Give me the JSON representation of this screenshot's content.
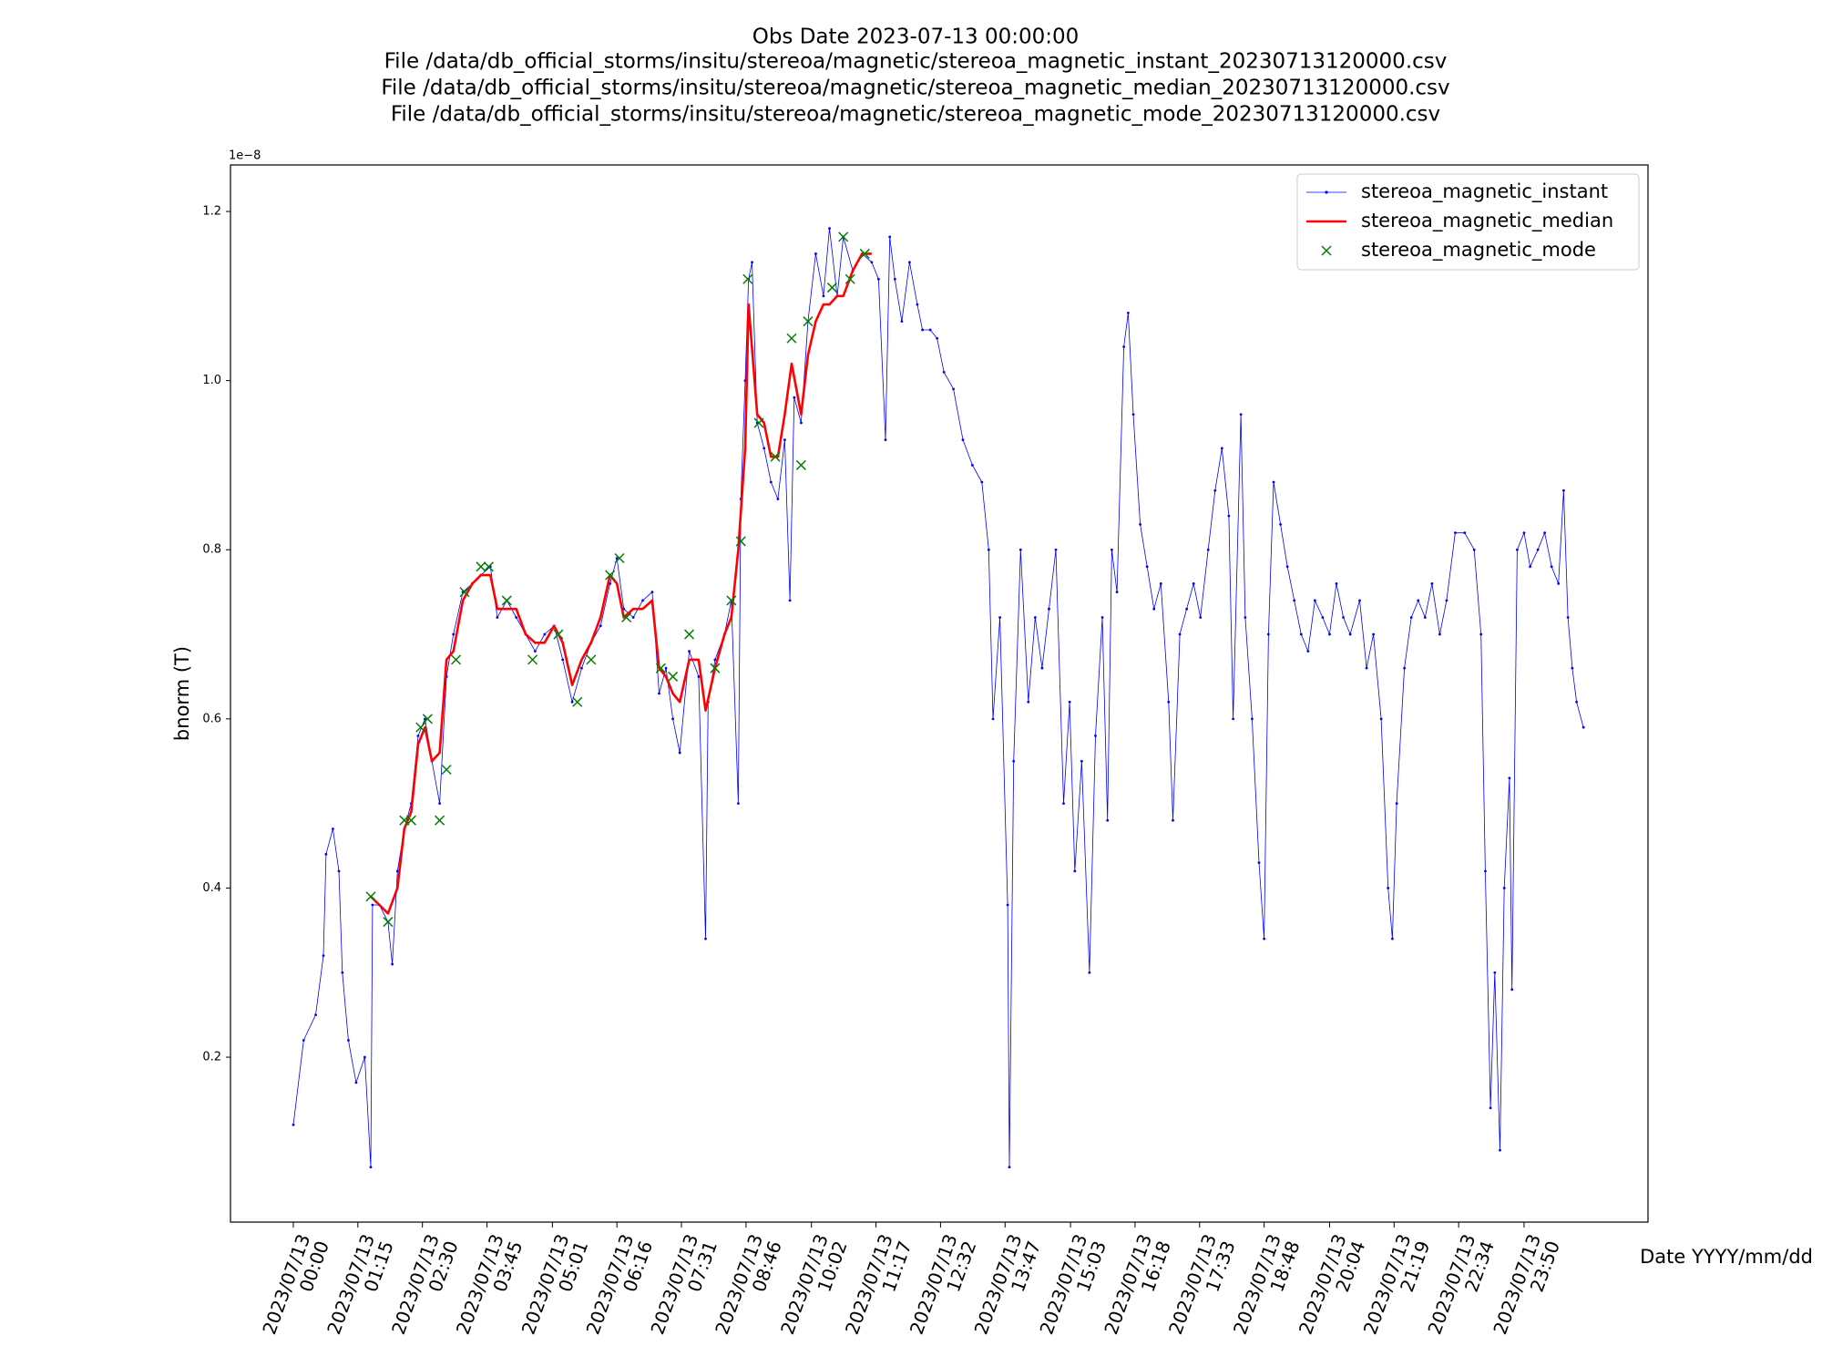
{
  "chart_data": {
    "type": "line",
    "title": [
      "Obs Date 2023-07-13 00:00:00",
      "File /data/db_official_storms/insitu/stereoa/magnetic/stereoa_magnetic_instant_20230713120000.csv",
      "File /data/db_official_storms/insitu/stereoa/magnetic/stereoa_magnetic_median_20230713120000.csv",
      "File /data/db_official_storms/insitu/stereoa/magnetic/stereoa_magnetic_mode_20230713120000.csv"
    ],
    "x_label": "Date YYYY/mm/dd",
    "y_label": "bnorm (T)",
    "y_offset_label": "1e−8",
    "legend": "upper right",
    "xlim": [
      "2023-07-12 22:47",
      "2023-07-14 02:14"
    ],
    "ylim": [
      0.005,
      1.255
    ],
    "yticks": [
      0.2,
      0.4,
      0.6,
      0.8,
      {
        "value": 1,
        "label": "1.0"
      },
      1.2
    ],
    "xticks": [
      {
        "value": "2023-07-13 00:00",
        "label": "2023/07/13\n00:00"
      },
      {
        "value": "2023-07-13 01:15",
        "label": "2023/07/13\n01:15"
      },
      {
        "value": "2023-07-13 02:30",
        "label": "2023/07/13\n02:30"
      },
      {
        "value": "2023-07-13 03:45",
        "label": "2023/07/13\n03:45"
      },
      {
        "value": "2023-07-13 05:01",
        "label": "2023/07/13\n05:01"
      },
      {
        "value": "2023-07-13 06:16",
        "label": "2023/07/13\n06:16"
      },
      {
        "value": "2023-07-13 07:31",
        "label": "2023/07/13\n07:31"
      },
      {
        "value": "2023-07-13 08:46",
        "label": "2023/07/13\n08:46"
      },
      {
        "value": "2023-07-13 10:02",
        "label": "2023/07/13\n10:02"
      },
      {
        "value": "2023-07-13 11:17",
        "label": "2023/07/13\n11:17"
      },
      {
        "value": "2023-07-13 12:32",
        "label": "2023/07/13\n12:32"
      },
      {
        "value": "2023-07-13 13:47",
        "label": "2023/07/13\n13:47"
      },
      {
        "value": "2023-07-13 15:03",
        "label": "2023/07/13\n15:03"
      },
      {
        "value": "2023-07-13 16:18",
        "label": "2023/07/13\n16:18"
      },
      {
        "value": "2023-07-13 17:33",
        "label": "2023/07/13\n17:33"
      },
      {
        "value": "2023-07-13 18:48",
        "label": "2023/07/13\n18:48"
      },
      {
        "value": "2023-07-13 20:04",
        "label": "2023/07/13\n20:04"
      },
      {
        "value": "2023-07-13 21:19",
        "label": "2023/07/13\n21:19"
      },
      {
        "value": "2023-07-13 22:34",
        "label": "2023/07/13\n22:34"
      },
      {
        "value": "2023-07-13 23:50",
        "label": "2023/07/13\n23:50"
      }
    ],
    "series": [
      {
        "name": "stereoa_magnetic_instant",
        "color": "#0000ff",
        "linestyle": "solid",
        "linewidth": 0.8,
        "marker": ".",
        "x": [
          "2023-07-13 00:00",
          "2023-07-13 00:12",
          "2023-07-13 00:26",
          "2023-07-13 00:35",
          "2023-07-13 00:38",
          "2023-07-13 00:46",
          "2023-07-13 00:53",
          "2023-07-13 00:57",
          "2023-07-13 01:04",
          "2023-07-13 01:13",
          "2023-07-13 01:23",
          "2023-07-13 01:30",
          "2023-07-13 01:32",
          "2023-07-13 01:40",
          "2023-07-13 01:50",
          "2023-07-13 01:55",
          "2023-07-13 02:01",
          "2023-07-13 02:09",
          "2023-07-13 02:17",
          "2023-07-13 02:25",
          "2023-07-13 02:33",
          "2023-07-13 02:41",
          "2023-07-13 02:50",
          "2023-07-13 02:58",
          "2023-07-13 03:06",
          "2023-07-13 03:17",
          "2023-07-13 03:28",
          "2023-07-13 03:38",
          "2023-07-13 03:49",
          "2023-07-13 03:57",
          "2023-07-13 04:08",
          "2023-07-13 04:19",
          "2023-07-13 04:30",
          "2023-07-13 04:41",
          "2023-07-13 04:52",
          "2023-07-13 05:03",
          "2023-07-13 05:13",
          "2023-07-13 05:24",
          "2023-07-13 05:35",
          "2023-07-13 05:46",
          "2023-07-13 05:57",
          "2023-07-13 06:08",
          "2023-07-13 06:16",
          "2023-07-13 06:24",
          "2023-07-13 06:35",
          "2023-07-13 06:46",
          "2023-07-13 06:57",
          "2023-07-13 07:05",
          "2023-07-13 07:13",
          "2023-07-13 07:21",
          "2023-07-13 07:29",
          "2023-07-13 07:40",
          "2023-07-13 07:51",
          "2023-07-13 07:59",
          "2023-07-13 08:02",
          "2023-07-13 08:10",
          "2023-07-13 08:21",
          "2023-07-13 08:29",
          "2023-07-13 08:37",
          "2023-07-13 08:40",
          "2023-07-13 08:45",
          "2023-07-13 08:49",
          "2023-07-13 08:53",
          "2023-07-13 08:59",
          "2023-07-13 09:07",
          "2023-07-13 09:15",
          "2023-07-13 09:23",
          "2023-07-13 09:31",
          "2023-07-13 09:37",
          "2023-07-13 09:42",
          "2023-07-13 09:50",
          "2023-07-13 09:58",
          "2023-07-13 10:07",
          "2023-07-13 10:16",
          "2023-07-13 10:23",
          "2023-07-13 10:32",
          "2023-07-13 10:39",
          "2023-07-13 10:50",
          "2023-07-13 11:01",
          "2023-07-13 11:12",
          "2023-07-13 11:20",
          "2023-07-13 11:28",
          "2023-07-13 11:33",
          "2023-07-13 11:39",
          "2023-07-13 11:47",
          "2023-07-13 11:56",
          "2023-07-13 12:05",
          "2023-07-13 12:11",
          "2023-07-13 12:20",
          "2023-07-13 12:28",
          "2023-07-13 12:36",
          "2023-07-13 12:47",
          "2023-07-13 12:58",
          "2023-07-13 13:09",
          "2023-07-13 13:20",
          "2023-07-13 13:28",
          "2023-07-13 13:33",
          "2023-07-13 13:41",
          "2023-07-13 13:50",
          "2023-07-13 13:52",
          "2023-07-13 13:57",
          "2023-07-13 14:05",
          "2023-07-13 14:14",
          "2023-07-13 14:22",
          "2023-07-13 14:30",
          "2023-07-13 14:38",
          "2023-07-13 14:46",
          "2023-07-13 14:55",
          "2023-07-13 15:02",
          "2023-07-13 15:08",
          "2023-07-13 15:16",
          "2023-07-13 15:25",
          "2023-07-13 15:32",
          "2023-07-13 15:40",
          "2023-07-13 15:46",
          "2023-07-13 15:51",
          "2023-07-13 15:57",
          "2023-07-13 16:05",
          "2023-07-13 16:10",
          "2023-07-13 16:16",
          "2023-07-13 16:24",
          "2023-07-13 16:32",
          "2023-07-13 16:40",
          "2023-07-13 16:48",
          "2023-07-13 16:57",
          "2023-07-13 17:02",
          "2023-07-13 17:10",
          "2023-07-13 17:18",
          "2023-07-13 17:26",
          "2023-07-13 17:34",
          "2023-07-13 17:43",
          "2023-07-13 17:51",
          "2023-07-13 17:59",
          "2023-07-13 18:07",
          "2023-07-13 18:12",
          "2023-07-13 18:21",
          "2023-07-13 18:26",
          "2023-07-13 18:34",
          "2023-07-13 18:42",
          "2023-07-13 18:48",
          "2023-07-13 18:53",
          "2023-07-13 18:59",
          "2023-07-13 19:07",
          "2023-07-13 19:15",
          "2023-07-13 19:23",
          "2023-07-13 19:31",
          "2023-07-13 19:39",
          "2023-07-13 19:47",
          "2023-07-13 19:56",
          "2023-07-13 20:04",
          "2023-07-13 20:12",
          "2023-07-13 20:20",
          "2023-07-13 20:28",
          "2023-07-13 20:39",
          "2023-07-13 20:47",
          "2023-07-13 20:55",
          "2023-07-13 21:04",
          "2023-07-13 21:12",
          "2023-07-13 21:17",
          "2023-07-13 21:22",
          "2023-07-13 21:31",
          "2023-07-13 21:39",
          "2023-07-13 21:47",
          "2023-07-13 21:55",
          "2023-07-13 22:03",
          "2023-07-13 22:12",
          "2023-07-13 22:20",
          "2023-07-13 22:30",
          "2023-07-13 22:41",
          "2023-07-13 22:52",
          "2023-07-13 23:00",
          "2023-07-13 23:05",
          "2023-07-13 23:11",
          "2023-07-13 23:16",
          "2023-07-13 23:22",
          "2023-07-13 23:27",
          "2023-07-13 23:33",
          "2023-07-13 23:36",
          "2023-07-13 23:42",
          "2023-07-13 23:50",
          "2023-07-13 23:57",
          "2023-07-14 00:06",
          "2023-07-14 00:14",
          "2023-07-14 00:22",
          "2023-07-14 00:30",
          "2023-07-14 00:36",
          "2023-07-14 00:41",
          "2023-07-14 00:46",
          "2023-07-14 00:51",
          "2023-07-14 00:59"
        ],
        "values": [
          0.12,
          0.22,
          0.25,
          0.32,
          0.44,
          0.47,
          0.42,
          0.3,
          0.22,
          0.17,
          0.2,
          0.07,
          0.38,
          0.38,
          0.36,
          0.31,
          0.42,
          0.47,
          0.5,
          0.58,
          0.6,
          0.55,
          0.5,
          0.65,
          0.7,
          0.75,
          0.76,
          0.77,
          0.78,
          0.72,
          0.74,
          0.72,
          0.7,
          0.68,
          0.7,
          0.71,
          0.67,
          0.62,
          0.66,
          0.69,
          0.71,
          0.76,
          0.79,
          0.73,
          0.72,
          0.74,
          0.75,
          0.63,
          0.66,
          0.6,
          0.56,
          0.68,
          0.65,
          0.34,
          0.62,
          0.67,
          0.7,
          0.74,
          0.5,
          0.86,
          1.0,
          1.12,
          1.14,
          0.95,
          0.92,
          0.88,
          0.86,
          0.93,
          0.74,
          0.98,
          0.95,
          1.07,
          1.15,
          1.1,
          1.18,
          1.1,
          1.17,
          1.13,
          1.15,
          1.14,
          1.12,
          0.93,
          1.17,
          1.12,
          1.07,
          1.14,
          1.09,
          1.06,
          1.06,
          1.05,
          1.01,
          0.99,
          0.93,
          0.9,
          0.88,
          0.8,
          0.6,
          0.72,
          0.38,
          0.07,
          0.55,
          0.8,
          0.62,
          0.72,
          0.66,
          0.73,
          0.8,
          0.5,
          0.62,
          0.42,
          0.55,
          0.3,
          0.58,
          0.72,
          0.48,
          0.8,
          0.75,
          1.04,
          1.08,
          0.96,
          0.83,
          0.78,
          0.73,
          0.76,
          0.62,
          0.48,
          0.7,
          0.73,
          0.76,
          0.72,
          0.8,
          0.87,
          0.92,
          0.84,
          0.6,
          0.96,
          0.72,
          0.6,
          0.43,
          0.34,
          0.7,
          0.88,
          0.83,
          0.78,
          0.74,
          0.7,
          0.68,
          0.74,
          0.72,
          0.7,
          0.76,
          0.72,
          0.7,
          0.74,
          0.66,
          0.7,
          0.6,
          0.4,
          0.34,
          0.5,
          0.66,
          0.72,
          0.74,
          0.72,
          0.76,
          0.7,
          0.74,
          0.82,
          0.82,
          0.8,
          0.7,
          0.42,
          0.14,
          0.3,
          0.09,
          0.4,
          0.53,
          0.28,
          0.8,
          0.82,
          0.78,
          0.8,
          0.82,
          0.78,
          0.76,
          0.87,
          0.72,
          0.66,
          0.62,
          0.59
        ]
      },
      {
        "name": "stereoa_magnetic_median",
        "color": "#ff0000",
        "linestyle": "solid",
        "linewidth": 2.6,
        "marker": "none",
        "x": [
          "2023-07-13 01:30",
          "2023-07-13 01:40",
          "2023-07-13 01:50",
          "2023-07-13 02:01",
          "2023-07-13 02:09",
          "2023-07-13 02:17",
          "2023-07-13 02:25",
          "2023-07-13 02:33",
          "2023-07-13 02:41",
          "2023-07-13 02:50",
          "2023-07-13 02:58",
          "2023-07-13 03:06",
          "2023-07-13 03:17",
          "2023-07-13 03:28",
          "2023-07-13 03:38",
          "2023-07-13 03:49",
          "2023-07-13 03:57",
          "2023-07-13 04:08",
          "2023-07-13 04:19",
          "2023-07-13 04:30",
          "2023-07-13 04:41",
          "2023-07-13 04:52",
          "2023-07-13 05:03",
          "2023-07-13 05:13",
          "2023-07-13 05:24",
          "2023-07-13 05:35",
          "2023-07-13 05:46",
          "2023-07-13 05:57",
          "2023-07-13 06:08",
          "2023-07-13 06:16",
          "2023-07-13 06:24",
          "2023-07-13 06:35",
          "2023-07-13 06:46",
          "2023-07-13 06:57",
          "2023-07-13 07:05",
          "2023-07-13 07:13",
          "2023-07-13 07:21",
          "2023-07-13 07:29",
          "2023-07-13 07:40",
          "2023-07-13 07:51",
          "2023-07-13 07:59",
          "2023-07-13 08:10",
          "2023-07-13 08:21",
          "2023-07-13 08:29",
          "2023-07-13 08:37",
          "2023-07-13 08:45",
          "2023-07-13 08:49",
          "2023-07-13 08:59",
          "2023-07-13 09:07",
          "2023-07-13 09:15",
          "2023-07-13 09:23",
          "2023-07-13 09:31",
          "2023-07-13 09:39",
          "2023-07-13 09:50",
          "2023-07-13 09:58",
          "2023-07-13 10:07",
          "2023-07-13 10:16",
          "2023-07-13 10:23",
          "2023-07-13 10:32",
          "2023-07-13 10:39",
          "2023-07-13 10:50",
          "2023-07-13 11:01",
          "2023-07-13 11:12"
        ],
        "values": [
          0.39,
          0.38,
          0.37,
          0.4,
          0.47,
          0.49,
          0.57,
          0.59,
          0.55,
          0.56,
          0.67,
          0.68,
          0.74,
          0.76,
          0.77,
          0.77,
          0.73,
          0.73,
          0.73,
          0.7,
          0.69,
          0.69,
          0.71,
          0.69,
          0.64,
          0.67,
          0.69,
          0.72,
          0.77,
          0.76,
          0.72,
          0.73,
          0.73,
          0.74,
          0.66,
          0.65,
          0.63,
          0.62,
          0.67,
          0.67,
          0.61,
          0.66,
          0.7,
          0.72,
          0.8,
          0.92,
          1.09,
          0.96,
          0.95,
          0.91,
          0.91,
          0.96,
          1.02,
          0.96,
          1.03,
          1.07,
          1.09,
          1.09,
          1.1,
          1.1,
          1.13,
          1.15,
          1.15
        ]
      },
      {
        "name": "stereoa_magnetic_mode",
        "color": "#008000",
        "linestyle": "none",
        "marker": "x",
        "x": [
          "2023-07-13 01:30",
          "2023-07-13 01:50",
          "2023-07-13 02:09",
          "2023-07-13 02:17",
          "2023-07-13 02:28",
          "2023-07-13 02:36",
          "2023-07-13 02:50",
          "2023-07-13 02:58",
          "2023-07-13 03:09",
          "2023-07-13 03:19",
          "2023-07-13 03:38",
          "2023-07-13 03:47",
          "2023-07-13 04:08",
          "2023-07-13 04:38",
          "2023-07-13 05:08",
          "2023-07-13 05:30",
          "2023-07-13 05:46",
          "2023-07-13 06:08",
          "2023-07-13 06:19",
          "2023-07-13 06:27",
          "2023-07-13 07:07",
          "2023-07-13 07:21",
          "2023-07-13 07:40",
          "2023-07-13 08:10",
          "2023-07-13 08:29",
          "2023-07-13 08:40",
          "2023-07-13 08:48",
          "2023-07-13 09:01",
          "2023-07-13 09:20",
          "2023-07-13 09:39",
          "2023-07-13 09:50",
          "2023-07-13 09:58",
          "2023-07-13 10:26",
          "2023-07-13 10:39",
          "2023-07-13 10:47",
          "2023-07-13 11:04"
        ],
        "values": [
          0.39,
          0.36,
          0.48,
          0.48,
          0.59,
          0.6,
          0.48,
          0.54,
          0.67,
          0.75,
          0.78,
          0.78,
          0.74,
          0.67,
          0.7,
          0.62,
          0.67,
          0.77,
          0.79,
          0.72,
          0.66,
          0.65,
          0.7,
          0.66,
          0.74,
          0.81,
          1.12,
          0.95,
          0.91,
          1.05,
          0.9,
          1.07,
          1.11,
          1.17,
          1.12,
          1.15
        ]
      }
    ]
  }
}
